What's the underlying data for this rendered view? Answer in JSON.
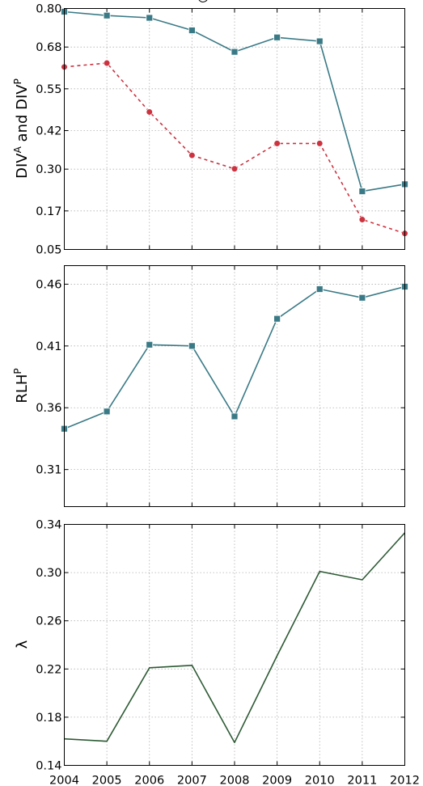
{
  "chart_data": [
    {
      "type": "line",
      "ylabel": {
        "base1": "DIV",
        "sup1": "A",
        "mid": " and ",
        "base2": "DIV",
        "sup2": "P"
      },
      "x": [
        2004,
        2005,
        2006,
        2007,
        2008,
        2009,
        2010,
        2011,
        2012
      ],
      "ylim": [
        0.05,
        0.8
      ],
      "yticks": [
        "0.80",
        "0.68",
        "0.55",
        "0.42",
        "0.30",
        "0.17",
        "0.05"
      ],
      "grid": true,
      "series": [
        {
          "values": [
            0.79,
            0.778,
            0.771,
            0.732,
            0.665,
            0.71,
            0.698,
            0.231,
            0.253
          ],
          "color": "#3a7a86",
          "style": "solid",
          "marker": "square"
        },
        {
          "values": [
            0.618,
            0.63,
            0.478,
            0.343,
            0.301,
            0.38,
            0.38,
            0.143,
            0.1
          ],
          "color": "#cc3340",
          "style": "dashed",
          "marker": "circle"
        }
      ]
    },
    {
      "type": "line",
      "ylabel": {
        "base": "RLH",
        "sup": "P"
      },
      "x": [
        2004,
        2005,
        2006,
        2007,
        2008,
        2009,
        2010,
        2011,
        2012
      ],
      "ylim": [
        0.28,
        0.475
      ],
      "yticks": [
        "0.46",
        "0.41",
        "0.36",
        "0.31"
      ],
      "grid": true,
      "series": [
        {
          "values": [
            0.343,
            0.357,
            0.411,
            0.41,
            0.353,
            0.432,
            0.456,
            0.449,
            0.458
          ],
          "color": "#3a7a86",
          "style": "solid",
          "marker": "square"
        }
      ]
    },
    {
      "type": "line",
      "ylabel": "λ",
      "x": [
        2004,
        2005,
        2006,
        2007,
        2008,
        2009,
        2010,
        2011,
        2012
      ],
      "xticks": [
        "2004",
        "2005",
        "2006",
        "2007",
        "2008",
        "2009",
        "2010",
        "2011",
        "2012"
      ],
      "ylim": [
        0.14,
        0.34
      ],
      "yticks": [
        "0.34",
        "0.30",
        "0.26",
        "0.22",
        "0.18",
        "0.14"
      ],
      "grid": true,
      "series": [
        {
          "values": [
            0.162,
            0.16,
            0.221,
            0.223,
            0.159,
            0.231,
            0.301,
            0.294,
            0.333
          ],
          "color": "#2d5a34",
          "style": "solid",
          "marker": "none"
        }
      ]
    }
  ]
}
